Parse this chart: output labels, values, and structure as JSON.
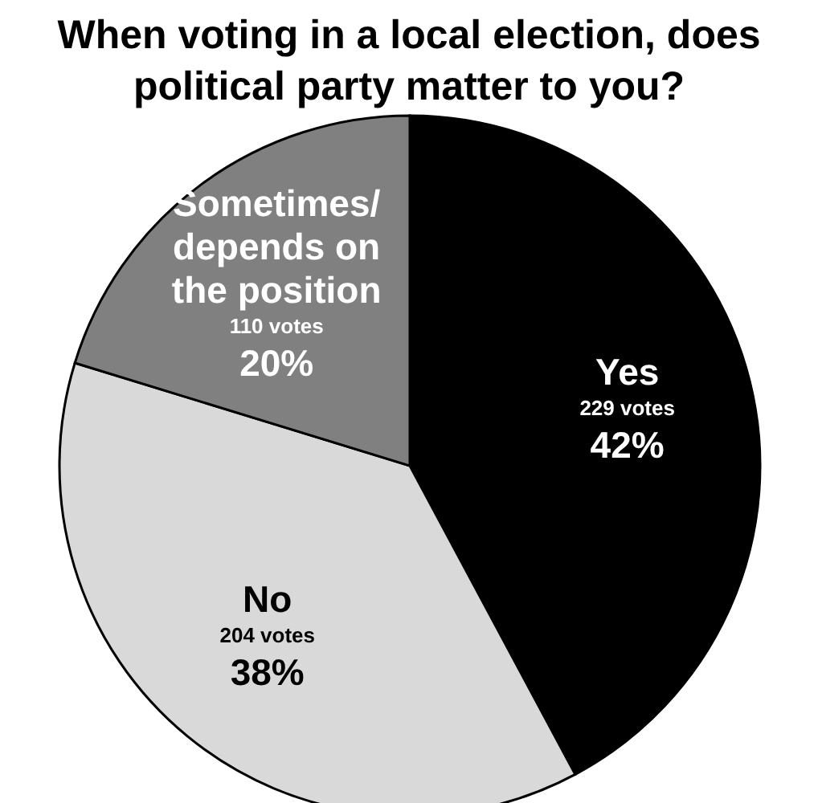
{
  "chart_data": {
    "type": "pie",
    "title": "When voting in a local election, does political party matter to you?",
    "categories": [
      "Yes",
      "No",
      "Sometimes/ depends on the position"
    ],
    "values": [
      229,
      204,
      110
    ],
    "colors": [
      "#000000",
      "#d9d9d9",
      "#808080"
    ],
    "value_labels": [
      "229 votes",
      "204 votes",
      "110 votes"
    ],
    "annotations": [
      {
        "text": "42%",
        "x": "Yes"
      },
      {
        "text": "38%",
        "x": "No"
      },
      {
        "text": "20%",
        "x": "Sometimes/ depends on the position"
      }
    ]
  }
}
